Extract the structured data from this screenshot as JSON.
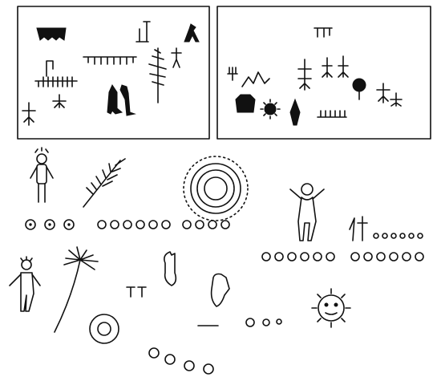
{
  "image": {
    "kind": "petroglyph line drawing plate",
    "panels": [
      "left-rock-panel",
      "right-rock-panel"
    ],
    "ink_color": "#111111",
    "background": "#ffffff"
  },
  "figures": {
    "row1": [
      "human-figure",
      "branch",
      "sun-circles",
      "arms-raised-figure"
    ],
    "row2": [
      "rayed-head-figure",
      "palm-branch",
      "hand",
      "hand",
      "sun-face"
    ],
    "dot_rows": [
      "3-dots",
      "6-dots",
      "4-dots",
      "6-dots",
      "6-dots",
      "6-small-dots",
      "3-dots",
      "4-dots"
    ]
  }
}
